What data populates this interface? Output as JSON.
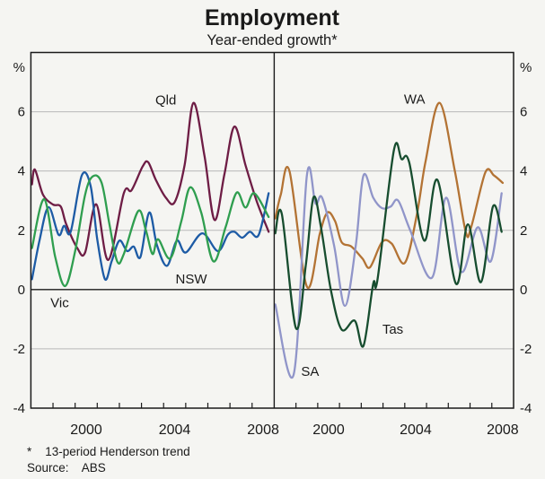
{
  "page": {
    "background": "#f5f5f2"
  },
  "header": {
    "title": "Employment",
    "subtitle": "Year-ended growth*"
  },
  "footer": {
    "footnote": "*    13-period Henderson trend",
    "source": "Source:    ABS"
  },
  "axes": {
    "unit_left": "%",
    "unit_right": "%",
    "yticks": [
      6,
      4,
      2,
      0,
      -2,
      -4
    ],
    "ylim": [
      -4,
      8
    ],
    "x_start": 1998,
    "x_end": 2009,
    "xtick_label_years": [
      2000,
      2004,
      2008
    ],
    "xtick_labels": [
      "2000",
      "2004",
      "2008"
    ]
  },
  "chart_data": {
    "type": "line",
    "title": "Employment",
    "subtitle": "Year-ended growth*",
    "ylabel": "%",
    "ylim": [
      -4,
      8
    ],
    "yticks": [
      6,
      4,
      2,
      0,
      -2,
      -4
    ],
    "grid": true,
    "legend_position": "inline-labels",
    "x_range_per_panel": [
      1998,
      2009
    ],
    "panels": [
      {
        "name": "left",
        "series": [
          {
            "name": "Qld",
            "color": "#6e1d45",
            "label": {
              "text": "Qld",
              "x": 2004.1,
              "y": 6.4
            },
            "points": [
              [
                1998.05,
                3.55
              ],
              [
                1998.18,
                4.05
              ],
              [
                1998.55,
                3.2
              ],
              [
                1999.0,
                2.87
              ],
              [
                1999.35,
                2.8
              ],
              [
                1999.6,
                2.2
              ],
              [
                2000.1,
                1.4
              ],
              [
                2000.45,
                1.25
              ],
              [
                2000.95,
                2.88
              ],
              [
                2001.5,
                1.0
              ],
              [
                2002.2,
                3.25
              ],
              [
                2002.55,
                3.35
              ],
              [
                2003.05,
                4.15
              ],
              [
                2003.3,
                4.3
              ],
              [
                2003.65,
                3.7
              ],
              [
                2004.1,
                3.1
              ],
              [
                2004.5,
                2.95
              ],
              [
                2004.95,
                4.2
              ],
              [
                2005.35,
                6.3
              ],
              [
                2005.85,
                4.5
              ],
              [
                2006.3,
                2.35
              ],
              [
                2006.75,
                3.9
              ],
              [
                2007.2,
                5.5
              ],
              [
                2007.7,
                4.2
              ],
              [
                2008.2,
                3.0
              ],
              [
                2008.75,
                1.95
              ]
            ]
          },
          {
            "name": "NSW",
            "color": "#1d5ba5",
            "label": {
              "text": "NSW",
              "x": 2005.25,
              "y": 0.36
            },
            "points": [
              [
                1998.05,
                0.35
              ],
              [
                1998.4,
                1.7
              ],
              [
                1998.8,
                2.78
              ],
              [
                1999.25,
                1.85
              ],
              [
                1999.5,
                2.15
              ],
              [
                1999.8,
                1.95
              ],
              [
                2000.3,
                3.85
              ],
              [
                2000.7,
                3.5
              ],
              [
                2001.0,
                1.7
              ],
              [
                2001.35,
                0.35
              ],
              [
                2001.65,
                0.95
              ],
              [
                2002.0,
                1.65
              ],
              [
                2002.35,
                1.3
              ],
              [
                2002.65,
                1.45
              ],
              [
                2002.95,
                1.1
              ],
              [
                2003.35,
                2.6
              ],
              [
                2003.7,
                1.5
              ],
              [
                2004.15,
                0.8
              ],
              [
                2004.6,
                1.65
              ],
              [
                2005.0,
                1.25
              ],
              [
                2005.75,
                1.9
              ],
              [
                2006.45,
                1.3
              ],
              [
                2006.9,
                1.85
              ],
              [
                2007.2,
                1.95
              ],
              [
                2007.55,
                1.75
              ],
              [
                2007.9,
                1.95
              ],
              [
                2008.3,
                1.85
              ],
              [
                2008.75,
                3.25
              ]
            ]
          },
          {
            "name": "Vic",
            "color": "#2f9e4f",
            "label": {
              "text": "Vic",
              "x": 1999.3,
              "y": -0.45
            },
            "points": [
              [
                1998.05,
                1.4
              ],
              [
                1998.6,
                3.05
              ],
              [
                1999.1,
                1.1
              ],
              [
                1999.55,
                0.12
              ],
              [
                2000.0,
                1.3
              ],
              [
                2000.45,
                3.2
              ],
              [
                2000.8,
                3.82
              ],
              [
                2001.2,
                3.6
              ],
              [
                2001.55,
                2.2
              ],
              [
                2001.9,
                0.95
              ],
              [
                2002.2,
                1.2
              ],
              [
                2002.85,
                2.65
              ],
              [
                2003.2,
                2.0
              ],
              [
                2003.5,
                1.2
              ],
              [
                2003.75,
                1.7
              ],
              [
                2004.3,
                1.05
              ],
              [
                2004.8,
                2.3
              ],
              [
                2005.2,
                3.45
              ],
              [
                2005.7,
                2.6
              ],
              [
                2006.25,
                0.95
              ],
              [
                2006.8,
                2.1
              ],
              [
                2007.3,
                3.27
              ],
              [
                2007.7,
                2.77
              ],
              [
                2008.1,
                3.25
              ],
              [
                2008.75,
                2.45
              ]
            ]
          }
        ]
      },
      {
        "name": "right",
        "series": [
          {
            "name": "WA",
            "color": "#b37334",
            "label": {
              "text": "WA",
              "x": 2004.45,
              "y": 6.42
            },
            "points": [
              [
                1998.05,
                2.4
              ],
              [
                1998.3,
                3.2
              ],
              [
                1998.7,
                4.0
              ],
              [
                1999.5,
                0.1
              ],
              [
                2000.1,
                1.9
              ],
              [
                2000.45,
                2.6
              ],
              [
                2000.8,
                2.3
              ],
              [
                2001.1,
                1.6
              ],
              [
                2001.55,
                1.45
              ],
              [
                2002.05,
                1.05
              ],
              [
                2002.4,
                0.75
              ],
              [
                2002.95,
                1.6
              ],
              [
                2003.4,
                1.55
              ],
              [
                2004.0,
                0.9
              ],
              [
                2004.55,
                2.5
              ],
              [
                2004.95,
                4.3
              ],
              [
                2005.6,
                6.3
              ],
              [
                2006.3,
                4.0
              ],
              [
                2006.8,
                1.95
              ],
              [
                2007.05,
                2.1
              ],
              [
                2007.7,
                3.95
              ],
              [
                2008.1,
                3.85
              ],
              [
                2008.5,
                3.6
              ]
            ]
          },
          {
            "name": "SA",
            "color": "#9095c9",
            "label": {
              "text": "SA",
              "x": 1999.65,
              "y": -2.76
            },
            "points": [
              [
                1998.05,
                -0.5
              ],
              [
                1998.9,
                -2.85
              ],
              [
                1999.5,
                3.85
              ],
              [
                1999.9,
                2.9
              ],
              [
                2000.2,
                3.1
              ],
              [
                2000.75,
                1.5
              ],
              [
                2001.25,
                -0.55
              ],
              [
                2001.75,
                1.5
              ],
              [
                2002.1,
                3.85
              ],
              [
                2002.55,
                3.1
              ],
              [
                2002.95,
                2.75
              ],
              [
                2003.35,
                2.8
              ],
              [
                2003.7,
                3.0
              ],
              [
                2004.25,
                2.0
              ],
              [
                2005.25,
                0.4
              ],
              [
                2005.9,
                3.1
              ],
              [
                2006.6,
                0.6
              ],
              [
                2007.35,
                2.1
              ],
              [
                2007.95,
                0.95
              ],
              [
                2008.45,
                3.25
              ]
            ]
          },
          {
            "name": "Tas",
            "color": "#174d2f",
            "label": {
              "text": "Tas",
              "x": 2003.45,
              "y": -1.33
            },
            "points": [
              [
                1998.05,
                1.9
              ],
              [
                1998.35,
                2.55
              ],
              [
                1999.0,
                -1.3
              ],
              [
                1999.45,
                0.8
              ],
              [
                1999.8,
                3.1
              ],
              [
                2000.15,
                2.1
              ],
              [
                2000.6,
                0.0
              ],
              [
                2001.1,
                -1.35
              ],
              [
                2001.7,
                -1.05
              ],
              [
                2002.1,
                -1.9
              ],
              [
                2002.55,
                0.2
              ],
              [
                2002.75,
                0.35
              ],
              [
                2003.5,
                4.7
              ],
              [
                2003.85,
                4.4
              ],
              [
                2004.2,
                4.3
              ],
              [
                2004.9,
                1.65
              ],
              [
                2005.5,
                3.7
              ],
              [
                2006.35,
                0.2
              ],
              [
                2006.9,
                2.2
              ],
              [
                2007.5,
                0.25
              ],
              [
                2008.05,
                2.8
              ],
              [
                2008.45,
                1.95
              ]
            ]
          }
        ]
      }
    ]
  },
  "style": {
    "frame_color": "#1a1a1a",
    "grid_color": "#b9b9b9",
    "zero_line_color": "#1a1a1a"
  }
}
